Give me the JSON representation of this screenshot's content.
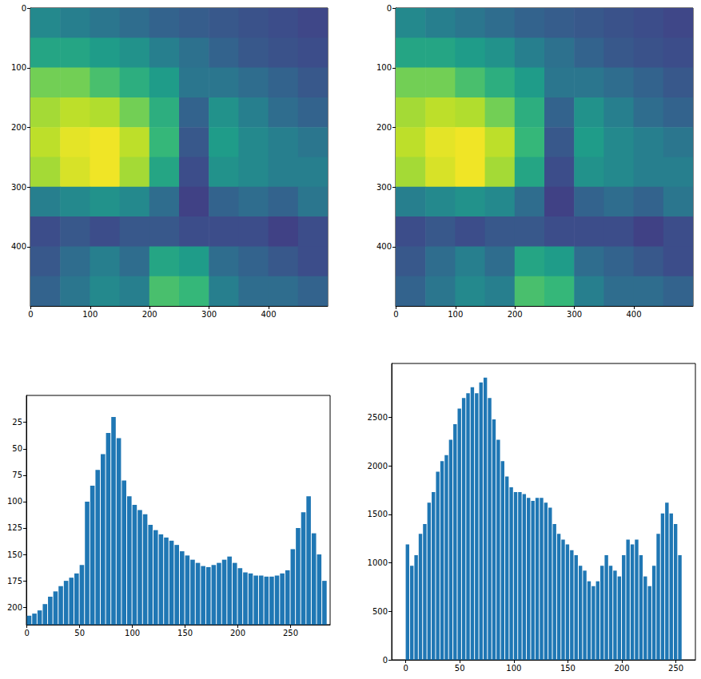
{
  "chart_data": [
    {
      "type": "heatmap",
      "xlim": [
        -0.5,
        499.5
      ],
      "ylim": [
        499.5,
        -0.5
      ],
      "xticks": [
        0,
        100,
        200,
        300,
        400
      ],
      "yticks": [
        0,
        100,
        200,
        300,
        400
      ],
      "x_edges": [
        -0.5,
        49.5,
        99.5,
        149.5,
        199.5,
        249.5,
        299.5,
        349.5,
        399.5,
        449.5,
        499.5
      ],
      "y_edges": [
        -0.5,
        49.5,
        99.5,
        149.5,
        199.5,
        249.5,
        299.5,
        349.5,
        399.5,
        449.5,
        499.5
      ],
      "color_range": [
        0,
        255
      ],
      "cells": [
        [
          120,
          110,
          100,
          90,
          80,
          75,
          70,
          65,
          60,
          55
        ],
        [
          150,
          150,
          140,
          130,
          110,
          95,
          80,
          70,
          65,
          60
        ],
        [
          200,
          200,
          180,
          160,
          140,
          100,
          100,
          90,
          80,
          70
        ],
        [
          220,
          230,
          225,
          200,
          160,
          80,
          130,
          110,
          90,
          80
        ],
        [
          230,
          245,
          250,
          230,
          170,
          70,
          140,
          120,
          110,
          100
        ],
        [
          220,
          240,
          250,
          220,
          150,
          60,
          130,
          120,
          110,
          110
        ],
        [
          110,
          120,
          130,
          120,
          90,
          50,
          80,
          90,
          80,
          100
        ],
        [
          60,
          70,
          60,
          70,
          70,
          60,
          60,
          60,
          50,
          60
        ],
        [
          70,
          90,
          110,
          90,
          150,
          140,
          90,
          80,
          70,
          60
        ],
        [
          80,
          100,
          120,
          110,
          180,
          170,
          110,
          90,
          90,
          80
        ]
      ],
      "grid": false
    },
    {
      "type": "heatmap",
      "xlim": [
        -0.5,
        499.5
      ],
      "ylim": [
        499.5,
        -0.5
      ],
      "xticks": [
        0,
        100,
        200,
        300,
        400
      ],
      "yticks": [
        0,
        100,
        200,
        300,
        400
      ],
      "x_edges": [
        -0.5,
        49.5,
        99.5,
        149.5,
        199.5,
        249.5,
        299.5,
        349.5,
        399.5,
        449.5,
        499.5
      ],
      "y_edges": [
        -0.5,
        49.5,
        99.5,
        149.5,
        199.5,
        249.5,
        299.5,
        349.5,
        399.5,
        449.5,
        499.5
      ],
      "color_range": [
        0,
        255
      ],
      "cells": [
        [
          120,
          110,
          100,
          90,
          80,
          75,
          70,
          65,
          60,
          55
        ],
        [
          150,
          150,
          140,
          130,
          110,
          95,
          80,
          70,
          65,
          60
        ],
        [
          200,
          200,
          180,
          160,
          140,
          100,
          100,
          90,
          80,
          70
        ],
        [
          220,
          230,
          225,
          200,
          160,
          80,
          130,
          110,
          90,
          80
        ],
        [
          230,
          245,
          250,
          230,
          170,
          70,
          140,
          120,
          110,
          100
        ],
        [
          220,
          240,
          250,
          220,
          150,
          60,
          130,
          120,
          110,
          110
        ],
        [
          110,
          120,
          130,
          120,
          90,
          50,
          80,
          90,
          80,
          100
        ],
        [
          60,
          70,
          60,
          70,
          70,
          60,
          60,
          60,
          50,
          60
        ],
        [
          70,
          90,
          110,
          90,
          150,
          140,
          90,
          80,
          70,
          60
        ],
        [
          80,
          100,
          120,
          110,
          180,
          170,
          110,
          90,
          90,
          80
        ]
      ],
      "grid": false
    },
    {
      "type": "histogram",
      "xlim": [
        -0.5,
        287.5
      ],
      "ylim": [
        216.5,
        -0.5
      ],
      "xticks": [
        0,
        50,
        100,
        150,
        200,
        250
      ],
      "yticks": [
        25,
        50,
        75,
        100,
        125,
        150,
        175,
        200
      ],
      "bins": [
        0,
        5,
        10,
        15,
        20,
        25,
        30,
        35,
        40,
        45,
        50,
        55,
        60,
        65,
        70,
        75,
        80,
        85,
        90,
        95,
        100,
        105,
        110,
        115,
        120,
        125,
        130,
        135,
        140,
        145,
        150,
        155,
        160,
        165,
        170,
        175,
        180,
        185,
        190,
        195,
        200,
        205,
        210,
        215,
        220,
        225,
        230,
        235,
        240,
        245,
        250,
        255,
        260,
        265,
        270,
        275,
        280,
        285
      ],
      "values": [
        208,
        206,
        203,
        197,
        190,
        185,
        180,
        175,
        172,
        168,
        160,
        100,
        85,
        70,
        55,
        35,
        20,
        40,
        80,
        95,
        103,
        108,
        112,
        122,
        127,
        131,
        134,
        137,
        141,
        147,
        151,
        155,
        158,
        161,
        162,
        160,
        158,
        155,
        152,
        158,
        163,
        167,
        168,
        170,
        170,
        171,
        171,
        170,
        168,
        165,
        145,
        125,
        110,
        95,
        130,
        150,
        175
      ],
      "color": "#1f77b4",
      "grid": false
    },
    {
      "type": "histogram",
      "xlim": [
        -13,
        268
      ],
      "ylim": [
        0,
        3056
      ],
      "xticks": [
        0,
        50,
        100,
        150,
        200,
        250
      ],
      "yticks": [
        0,
        500,
        1000,
        1500,
        2000,
        2500
      ],
      "bins": [
        0,
        4,
        8,
        12,
        16,
        20,
        24,
        28,
        32,
        36,
        40,
        44,
        48,
        52,
        56,
        60,
        64,
        68,
        72,
        76,
        80,
        84,
        88,
        92,
        96,
        100,
        104,
        108,
        112,
        116,
        120,
        124,
        128,
        132,
        136,
        140,
        144,
        148,
        152,
        156,
        160,
        164,
        168,
        172,
        176,
        180,
        184,
        188,
        192,
        196,
        200,
        204,
        208,
        212,
        216,
        220,
        224,
        228,
        232,
        236,
        240,
        244,
        248,
        252,
        256
      ],
      "values": [
        1190,
        970,
        1080,
        1300,
        1400,
        1620,
        1730,
        1940,
        2050,
        2110,
        2270,
        2430,
        2590,
        2700,
        2750,
        2810,
        2750,
        2860,
        2910,
        2700,
        2480,
        2270,
        2050,
        1890,
        1780,
        1730,
        1730,
        1710,
        1670,
        1640,
        1670,
        1670,
        1620,
        1570,
        1400,
        1300,
        1240,
        1190,
        1130,
        1080,
        970,
        920,
        810,
        760,
        810,
        970,
        1080,
        970,
        920,
        860,
        1080,
        1240,
        1190,
        1240,
        1080,
        860,
        760,
        970,
        1300,
        1510,
        1620,
        1510,
        1400,
        1080
      ],
      "color": "#1f77b4",
      "grid": false
    }
  ]
}
